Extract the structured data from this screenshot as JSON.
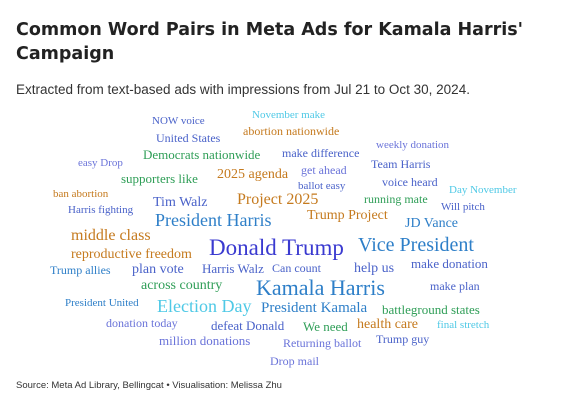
{
  "header": {
    "title": "Common Word Pairs in Meta Ads for Kamala Harris' Campaign",
    "subtitle": "Extracted from text-based ads with impressions from Jul 21 to Oct 30, 2024."
  },
  "footer": {
    "source": "Source: Meta Ad Library, Bellingcat • Visualisation: Melissa Zhu"
  },
  "chart_data": {
    "type": "wordcloud",
    "title": "Common Word Pairs in Meta Ads for Kamala Harris' Campaign",
    "words": [
      {
        "text": "NOW voice",
        "color": "#4a62c9",
        "weight": 1
      },
      {
        "text": "November make",
        "color": "#4fc9e6",
        "weight": 1
      },
      {
        "text": "United States",
        "color": "#4a62c9",
        "weight": 1.2
      },
      {
        "text": "abortion nationwide",
        "color": "#c57a1e",
        "weight": 1.2
      },
      {
        "text": "weekly donation",
        "color": "#6a73d9",
        "weight": 1
      },
      {
        "text": "Democrats nationwide",
        "color": "#2f9e57",
        "weight": 1.2
      },
      {
        "text": "make difference",
        "color": "#4a62c9",
        "weight": 1.2
      },
      {
        "text": "easy Drop",
        "color": "#6a73d9",
        "weight": 1
      },
      {
        "text": "get ahead",
        "color": "#6a73d9",
        "weight": 1.2
      },
      {
        "text": "Team Harris",
        "color": "#4a62c9",
        "weight": 1.2
      },
      {
        "text": "supporters like",
        "color": "#2f9e57",
        "weight": 1.2
      },
      {
        "text": "2025 agenda",
        "color": "#c57a1e",
        "weight": 1.4
      },
      {
        "text": "ballot easy",
        "color": "#4a62c9",
        "weight": 1
      },
      {
        "text": "voice heard",
        "color": "#4a62c9",
        "weight": 1.2
      },
      {
        "text": "ban abortion",
        "color": "#c57a1e",
        "weight": 1
      },
      {
        "text": "Day November",
        "color": "#4fc9e6",
        "weight": 1
      },
      {
        "text": "running mate",
        "color": "#2f9e57",
        "weight": 1.2
      },
      {
        "text": "Tim Walz",
        "color": "#4a62c9",
        "weight": 1.3
      },
      {
        "text": "Project 2025",
        "color": "#c57a1e",
        "weight": 1.6
      },
      {
        "text": "Harris fighting",
        "color": "#4a62c9",
        "weight": 1.1
      },
      {
        "text": "Will pitch",
        "color": "#4a62c9",
        "weight": 1
      },
      {
        "text": "President Harris",
        "color": "#2e7fc8",
        "weight": 1.8
      },
      {
        "text": "Trump Project",
        "color": "#c57a1e",
        "weight": 1.4
      },
      {
        "text": "JD Vance",
        "color": "#2e7fc8",
        "weight": 1.4
      },
      {
        "text": "middle class",
        "color": "#c57a1e",
        "weight": 1.6
      },
      {
        "text": "Donald Trump",
        "color": "#3a3ad0",
        "weight": 2.3
      },
      {
        "text": "Vice President",
        "color": "#2e7fc8",
        "weight": 2
      },
      {
        "text": "reproductive freedom",
        "color": "#c57a1e",
        "weight": 1.4
      },
      {
        "text": "Trump allies",
        "color": "#2e7fc8",
        "weight": 1.2
      },
      {
        "text": "plan vote",
        "color": "#4a62c9",
        "weight": 1.3
      },
      {
        "text": "Harris Walz",
        "color": "#4a62c9",
        "weight": 1.2
      },
      {
        "text": "Can count",
        "color": "#4a62c9",
        "weight": 1
      },
      {
        "text": "help us",
        "color": "#4a62c9",
        "weight": 1.3
      },
      {
        "text": "make donation",
        "color": "#4a62c9",
        "weight": 1.2
      },
      {
        "text": "across country",
        "color": "#2f9e57",
        "weight": 1.3
      },
      {
        "text": "Kamala Harris",
        "color": "#2e7fc8",
        "weight": 2.2
      },
      {
        "text": "make plan",
        "color": "#4a62c9",
        "weight": 1.1
      },
      {
        "text": "President United",
        "color": "#2e7fc8",
        "weight": 1
      },
      {
        "text": "Election Day",
        "color": "#4fc9e6",
        "weight": 1.7
      },
      {
        "text": "President Kamala",
        "color": "#2e7fc8",
        "weight": 1.5
      },
      {
        "text": "battleground states",
        "color": "#2f9e57",
        "weight": 1.2
      },
      {
        "text": "donation today",
        "color": "#6a73d9",
        "weight": 1.2
      },
      {
        "text": "defeat Donald",
        "color": "#4a62c9",
        "weight": 1.2
      },
      {
        "text": "We need",
        "color": "#2f9e57",
        "weight": 1.2
      },
      {
        "text": "health care",
        "color": "#c57a1e",
        "weight": 1.3
      },
      {
        "text": "final stretch",
        "color": "#4fc9e6",
        "weight": 1
      },
      {
        "text": "million donations",
        "color": "#6a73d9",
        "weight": 1.2
      },
      {
        "text": "Returning ballot",
        "color": "#6a73d9",
        "weight": 1
      },
      {
        "text": "Trump guy",
        "color": "#4a62c9",
        "weight": 1
      },
      {
        "text": "Drop mail",
        "color": "#6a73d9",
        "weight": 1
      }
    ]
  }
}
